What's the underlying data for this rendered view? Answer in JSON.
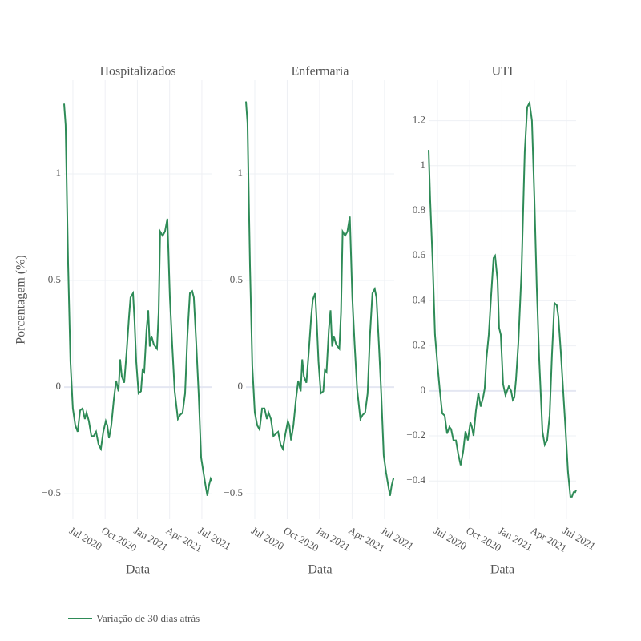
{
  "chart_data": [
    {
      "type": "line",
      "title": "Hospitalizados",
      "x_label": "Data",
      "y_label": "Porcentagem (%)",
      "x": [
        2020.432,
        2020.444,
        2020.463,
        2020.481,
        2020.5,
        2020.519,
        2020.537,
        2020.556,
        2020.575,
        2020.593,
        2020.606,
        2020.624,
        2020.643,
        2020.661,
        2020.68,
        2020.699,
        2020.717,
        2020.736,
        2020.755,
        2020.767,
        2020.78,
        2020.798,
        2020.817,
        2020.835,
        2020.854,
        2020.866,
        2020.879,
        2020.898,
        2020.916,
        2020.935,
        2020.947,
        2020.966,
        2020.978,
        2020.991,
        2021.009,
        2021.028,
        2021.04,
        2021.053,
        2021.071,
        2021.084,
        2021.096,
        2021.109,
        2021.127,
        2021.152,
        2021.165,
        2021.177,
        2021.196,
        2021.214,
        2021.233,
        2021.252,
        2021.27,
        2021.289,
        2021.314,
        2021.332,
        2021.351,
        2021.37,
        2021.388,
        2021.407,
        2021.425,
        2021.438,
        2021.457,
        2021.475,
        2021.494,
        2021.512,
        2021.531,
        2021.543,
        2021.556,
        2021.568,
        2021.575
      ],
      "series": [
        {
          "name": "Variação de 30 dias atrás",
          "color": "#2e8b57",
          "values": [
            1.33,
            1.23,
            0.58,
            0.12,
            -0.1,
            -0.18,
            -0.21,
            -0.11,
            -0.1,
            -0.15,
            -0.12,
            -0.16,
            -0.23,
            -0.23,
            -0.21,
            -0.27,
            -0.29,
            -0.21,
            -0.16,
            -0.18,
            -0.24,
            -0.18,
            -0.06,
            0.03,
            -0.02,
            0.13,
            0.05,
            0.02,
            0.16,
            0.33,
            0.42,
            0.44,
            0.31,
            0.12,
            -0.03,
            -0.02,
            0.08,
            0.07,
            0.27,
            0.36,
            0.19,
            0.24,
            0.2,
            0.18,
            0.35,
            0.73,
            0.71,
            0.73,
            0.79,
            0.42,
            0.2,
            -0.02,
            -0.15,
            -0.13,
            -0.12,
            -0.03,
            0.24,
            0.44,
            0.45,
            0.42,
            0.2,
            -0.03,
            -0.33,
            -0.4,
            -0.47,
            -0.51,
            -0.46,
            -0.43,
            -0.44
          ]
        }
      ],
      "xlim": [
        2020.432,
        2021.575
      ],
      "xticks": [
        {
          "value": 2020.5,
          "label": "Jul 2020"
        },
        {
          "value": 2020.75,
          "label": "Oct 2020"
        },
        {
          "value": 2021.0,
          "label": "Jan 2021"
        },
        {
          "value": 2021.25,
          "label": "Apr 2021"
        },
        {
          "value": 2021.5,
          "label": "Jul 2021"
        }
      ],
      "ylim": [
        -0.62,
        1.44
      ],
      "yticks": [
        {
          "value": -0.5,
          "label": "−0.5"
        },
        0,
        0.5,
        1
      ],
      "grid": true
    },
    {
      "type": "line",
      "title": "Enfermaria",
      "x_label": "Data",
      "x": [
        2020.432,
        2020.444,
        2020.463,
        2020.481,
        2020.5,
        2020.519,
        2020.537,
        2020.556,
        2020.575,
        2020.593,
        2020.606,
        2020.624,
        2020.643,
        2020.661,
        2020.68,
        2020.699,
        2020.717,
        2020.736,
        2020.755,
        2020.767,
        2020.78,
        2020.798,
        2020.817,
        2020.835,
        2020.854,
        2020.866,
        2020.879,
        2020.898,
        2020.916,
        2020.935,
        2020.947,
        2020.966,
        2020.978,
        2020.991,
        2021.009,
        2021.028,
        2021.04,
        2021.053,
        2021.071,
        2021.084,
        2021.096,
        2021.109,
        2021.127,
        2021.152,
        2021.165,
        2021.177,
        2021.196,
        2021.214,
        2021.233,
        2021.252,
        2021.27,
        2021.289,
        2021.314,
        2021.332,
        2021.351,
        2021.37,
        2021.388,
        2021.407,
        2021.425,
        2021.438,
        2021.457,
        2021.475,
        2021.494,
        2021.512,
        2021.531,
        2021.543,
        2021.556,
        2021.568,
        2021.575
      ],
      "series": [
        {
          "name": "Variação de 30 dias atrás",
          "color": "#2e8b57",
          "values": [
            1.34,
            1.24,
            0.57,
            0.1,
            -0.12,
            -0.18,
            -0.2,
            -0.1,
            -0.1,
            -0.15,
            -0.12,
            -0.15,
            -0.23,
            -0.22,
            -0.21,
            -0.27,
            -0.29,
            -0.22,
            -0.16,
            -0.18,
            -0.25,
            -0.18,
            -0.06,
            0.03,
            -0.02,
            0.13,
            0.05,
            0.02,
            0.16,
            0.33,
            0.41,
            0.44,
            0.3,
            0.12,
            -0.03,
            -0.02,
            0.08,
            0.07,
            0.27,
            0.36,
            0.19,
            0.24,
            0.2,
            0.18,
            0.35,
            0.73,
            0.71,
            0.73,
            0.8,
            0.42,
            0.2,
            -0.01,
            -0.15,
            -0.13,
            -0.12,
            -0.03,
            0.24,
            0.44,
            0.46,
            0.42,
            0.2,
            -0.03,
            -0.32,
            -0.4,
            -0.47,
            -0.51,
            -0.46,
            -0.43,
            -0.43
          ]
        }
      ],
      "xlim": [
        2020.432,
        2021.575
      ],
      "xticks": [
        {
          "value": 2020.5,
          "label": "Jul 2020"
        },
        {
          "value": 2020.75,
          "label": "Oct 2020"
        },
        {
          "value": 2021.0,
          "label": "Jan 2021"
        },
        {
          "value": 2021.25,
          "label": "Apr 2021"
        },
        {
          "value": 2021.5,
          "label": "Jul 2021"
        }
      ],
      "ylim": [
        -0.62,
        1.44
      ],
      "yticks": [
        {
          "value": -0.5,
          "label": "−0.5"
        },
        0,
        0.5,
        1
      ],
      "grid": true
    },
    {
      "type": "line",
      "title": "UTI",
      "x_label": "Data",
      "x": [
        2020.432,
        2020.444,
        2020.463,
        2020.481,
        2020.5,
        2020.519,
        2020.537,
        2020.556,
        2020.575,
        2020.593,
        2020.606,
        2020.624,
        2020.643,
        2020.661,
        2020.68,
        2020.699,
        2020.717,
        2020.736,
        2020.755,
        2020.767,
        2020.78,
        2020.798,
        2020.817,
        2020.835,
        2020.854,
        2020.866,
        2020.879,
        2020.898,
        2020.916,
        2020.935,
        2020.947,
        2020.966,
        2020.978,
        2020.991,
        2021.009,
        2021.028,
        2021.04,
        2021.053,
        2021.071,
        2021.084,
        2021.096,
        2021.109,
        2021.127,
        2021.152,
        2021.165,
        2021.177,
        2021.196,
        2021.214,
        2021.233,
        2021.252,
        2021.27,
        2021.289,
        2021.314,
        2021.332,
        2021.351,
        2021.37,
        2021.388,
        2021.407,
        2021.425,
        2021.438,
        2021.457,
        2021.475,
        2021.494,
        2021.512,
        2021.531,
        2021.543,
        2021.556,
        2021.568,
        2021.575
      ],
      "series": [
        {
          "name": "Variação de 30 dias atrás",
          "color": "#2e8b57",
          "values": [
            1.07,
            0.85,
            0.57,
            0.25,
            0.12,
            0.0,
            -0.1,
            -0.11,
            -0.19,
            -0.16,
            -0.17,
            -0.22,
            -0.22,
            -0.28,
            -0.33,
            -0.27,
            -0.18,
            -0.22,
            -0.14,
            -0.16,
            -0.2,
            -0.09,
            -0.01,
            -0.07,
            -0.03,
            0.01,
            0.14,
            0.25,
            0.42,
            0.59,
            0.6,
            0.49,
            0.28,
            0.25,
            0.03,
            -0.02,
            0.0,
            0.02,
            0.0,
            -0.04,
            -0.03,
            0.05,
            0.21,
            0.53,
            0.81,
            1.06,
            1.26,
            1.28,
            1.2,
            0.85,
            0.46,
            0.14,
            -0.18,
            -0.24,
            -0.22,
            -0.11,
            0.16,
            0.39,
            0.38,
            0.33,
            0.17,
            0.0,
            -0.18,
            -0.36,
            -0.47,
            -0.47,
            -0.45,
            -0.45,
            -0.44
          ]
        }
      ],
      "xlim": [
        2020.432,
        2021.575
      ],
      "xticks": [
        {
          "value": 2020.5,
          "label": "Jul 2020"
        },
        {
          "value": 2020.75,
          "label": "Oct 2020"
        },
        {
          "value": 2021.0,
          "label": "Jan 2021"
        },
        {
          "value": 2021.25,
          "label": "Apr 2021"
        },
        {
          "value": 2021.5,
          "label": "Jul 2021"
        }
      ],
      "ylim": [
        -0.57,
        1.38
      ],
      "yticks": [
        {
          "value": -0.4,
          "label": "−0.4"
        },
        {
          "value": -0.2,
          "label": "−0.2"
        },
        0,
        0.2,
        0.4,
        0.6,
        0.8,
        1,
        1.2
      ],
      "grid": true
    }
  ]
}
